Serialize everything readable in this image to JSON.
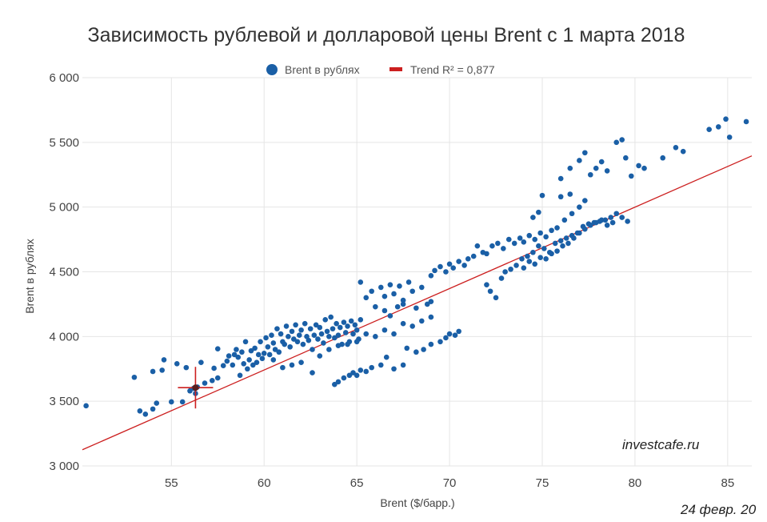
{
  "colors": {
    "series": "#1a5fa6",
    "trend": "#cc1f1f",
    "grid": "#e5e5e5",
    "axis_text": "#444444"
  },
  "watermark": "investcafe.ru",
  "datestamp": "24 февр. 20",
  "chart_data": {
    "type": "scatter",
    "title": "Зависимость рублевой и долларовой цены Brent с 1 марта 2018",
    "xlabel": "Brent ($/барр.)",
    "ylabel": "Brent в рублях",
    "xlim": [
      50.2,
      86.3
    ],
    "ylim": [
      3000,
      6000
    ],
    "xticks": [
      55,
      60,
      65,
      70,
      75,
      80,
      85
    ],
    "xtick_labels": [
      "55",
      "60",
      "65",
      "70",
      "75",
      "80",
      "85"
    ],
    "yticks": [
      3000,
      3500,
      4000,
      4500,
      5000,
      5500,
      6000
    ],
    "ytick_labels": [
      "3 000",
      "3 500",
      "4 000",
      "4 500",
      "5 000",
      "5 500",
      "6 000"
    ],
    "grid": true,
    "legend_position": "top-center",
    "series": [
      {
        "name": "Brent в рублях",
        "points": [
          [
            50.4,
            3465
          ],
          [
            53.0,
            3685
          ],
          [
            53.3,
            3425
          ],
          [
            53.6,
            3400
          ],
          [
            54.0,
            3440
          ],
          [
            54.0,
            3730
          ],
          [
            54.2,
            3485
          ],
          [
            54.5,
            3740
          ],
          [
            54.6,
            3820
          ],
          [
            55.0,
            3495
          ],
          [
            55.3,
            3790
          ],
          [
            55.6,
            3495
          ],
          [
            55.8,
            3760
          ],
          [
            56.0,
            3580
          ],
          [
            56.2,
            3600
          ],
          [
            56.3,
            3560
          ],
          [
            56.4,
            3610
          ],
          [
            56.6,
            3800
          ],
          [
            56.8,
            3640
          ],
          [
            57.2,
            3660
          ],
          [
            57.3,
            3755
          ],
          [
            57.5,
            3680
          ],
          [
            57.5,
            3905
          ],
          [
            57.8,
            3775
          ],
          [
            58.0,
            3810
          ],
          [
            58.1,
            3850
          ],
          [
            58.3,
            3780
          ],
          [
            58.4,
            3860
          ],
          [
            58.5,
            3900
          ],
          [
            58.6,
            3840
          ],
          [
            58.7,
            3700
          ],
          [
            58.8,
            3880
          ],
          [
            58.9,
            3790
          ],
          [
            59.0,
            3960
          ],
          [
            59.1,
            3750
          ],
          [
            59.2,
            3820
          ],
          [
            59.3,
            3890
          ],
          [
            59.4,
            3780
          ],
          [
            59.5,
            3910
          ],
          [
            59.6,
            3800
          ],
          [
            59.7,
            3860
          ],
          [
            59.8,
            3960
          ],
          [
            59.9,
            3830
          ],
          [
            60.0,
            3870
          ],
          [
            60.1,
            3990
          ],
          [
            60.2,
            3920
          ],
          [
            60.3,
            3860
          ],
          [
            60.4,
            4010
          ],
          [
            60.5,
            3950
          ],
          [
            60.6,
            3900
          ],
          [
            60.7,
            4060
          ],
          [
            60.8,
            3880
          ],
          [
            60.9,
            4020
          ],
          [
            61.0,
            3960
          ],
          [
            61.1,
            3940
          ],
          [
            61.2,
            4080
          ],
          [
            61.3,
            4000
          ],
          [
            61.4,
            3920
          ],
          [
            61.5,
            4040
          ],
          [
            61.6,
            3980
          ],
          [
            61.7,
            4090
          ],
          [
            61.8,
            3960
          ],
          [
            61.9,
            4010
          ],
          [
            62.0,
            4050
          ],
          [
            62.1,
            3940
          ],
          [
            62.2,
            4100
          ],
          [
            62.3,
            4000
          ],
          [
            62.4,
            3970
          ],
          [
            62.5,
            4060
          ],
          [
            62.6,
            3900
          ],
          [
            62.7,
            4010
          ],
          [
            62.8,
            4090
          ],
          [
            62.9,
            3980
          ],
          [
            63.0,
            4070
          ],
          [
            63.1,
            4020
          ],
          [
            63.2,
            3950
          ],
          [
            63.3,
            4130
          ],
          [
            63.4,
            4040
          ],
          [
            63.5,
            4000
          ],
          [
            63.6,
            4150
          ],
          [
            63.7,
            4060
          ],
          [
            63.8,
            3990
          ],
          [
            63.9,
            4100
          ],
          [
            64.0,
            4010
          ],
          [
            64.1,
            4070
          ],
          [
            64.2,
            3940
          ],
          [
            64.3,
            4110
          ],
          [
            64.4,
            4030
          ],
          [
            64.5,
            4080
          ],
          [
            64.6,
            3960
          ],
          [
            64.7,
            4120
          ],
          [
            64.8,
            4020
          ],
          [
            64.9,
            4090
          ],
          [
            65.0,
            4050
          ],
          [
            65.1,
            3980
          ],
          [
            65.2,
            4130
          ],
          [
            60.5,
            3820
          ],
          [
            61.0,
            3760
          ],
          [
            61.5,
            3780
          ],
          [
            62.0,
            3800
          ],
          [
            62.6,
            3720
          ],
          [
            63.0,
            3850
          ],
          [
            63.5,
            3900
          ],
          [
            64.0,
            3930
          ],
          [
            64.5,
            3940
          ],
          [
            65.0,
            3960
          ],
          [
            65.5,
            4020
          ],
          [
            66.0,
            4000
          ],
          [
            66.5,
            4050
          ],
          [
            67.0,
            4020
          ],
          [
            67.5,
            4100
          ],
          [
            68.0,
            4080
          ],
          [
            68.5,
            4120
          ],
          [
            69.0,
            4150
          ],
          [
            65.2,
            4420
          ],
          [
            65.5,
            4300
          ],
          [
            65.8,
            4350
          ],
          [
            66.0,
            4230
          ],
          [
            66.3,
            4380
          ],
          [
            66.5,
            4310
          ],
          [
            66.8,
            4400
          ],
          [
            67.0,
            4330
          ],
          [
            67.3,
            4390
          ],
          [
            67.5,
            4280
          ],
          [
            67.8,
            4420
          ],
          [
            68.0,
            4350
          ],
          [
            68.2,
            4220
          ],
          [
            68.5,
            4380
          ],
          [
            68.8,
            4250
          ],
          [
            69.0,
            4270
          ],
          [
            66.5,
            4200
          ],
          [
            66.8,
            4160
          ],
          [
            67.2,
            4230
          ],
          [
            67.5,
            4250
          ],
          [
            63.8,
            3630
          ],
          [
            64.0,
            3650
          ],
          [
            64.3,
            3680
          ],
          [
            64.6,
            3700
          ],
          [
            64.8,
            3720
          ],
          [
            65.0,
            3700
          ],
          [
            65.2,
            3740
          ],
          [
            65.5,
            3730
          ],
          [
            65.8,
            3760
          ],
          [
            66.3,
            3780
          ],
          [
            66.6,
            3840
          ],
          [
            67.0,
            3750
          ],
          [
            67.5,
            3780
          ],
          [
            67.7,
            3910
          ],
          [
            68.2,
            3880
          ],
          [
            68.6,
            3900
          ],
          [
            69.0,
            3940
          ],
          [
            69.5,
            3960
          ],
          [
            69.8,
            3990
          ],
          [
            70.0,
            4020
          ],
          [
            70.3,
            4010
          ],
          [
            70.5,
            4040
          ],
          [
            69.0,
            4470
          ],
          [
            69.2,
            4510
          ],
          [
            69.5,
            4540
          ],
          [
            69.8,
            4500
          ],
          [
            70.0,
            4560
          ],
          [
            70.2,
            4530
          ],
          [
            70.5,
            4580
          ],
          [
            70.8,
            4550
          ],
          [
            71.0,
            4600
          ],
          [
            71.3,
            4620
          ],
          [
            71.5,
            4700
          ],
          [
            71.8,
            4650
          ],
          [
            72.0,
            4640
          ],
          [
            72.3,
            4700
          ],
          [
            72.6,
            4720
          ],
          [
            72.9,
            4680
          ],
          [
            73.2,
            4750
          ],
          [
            73.5,
            4720
          ],
          [
            73.8,
            4760
          ],
          [
            74.0,
            4730
          ],
          [
            74.3,
            4780
          ],
          [
            74.6,
            4750
          ],
          [
            74.9,
            4800
          ],
          [
            75.2,
            4770
          ],
          [
            75.5,
            4820
          ],
          [
            75.8,
            4840
          ],
          [
            76.2,
            4900
          ],
          [
            76.6,
            4950
          ],
          [
            77.0,
            5000
          ],
          [
            77.3,
            5050
          ],
          [
            75.0,
            5090
          ],
          [
            76.0,
            5080
          ],
          [
            76.5,
            5100
          ],
          [
            74.5,
            4920
          ],
          [
            74.8,
            4960
          ],
          [
            72.0,
            4400
          ],
          [
            72.2,
            4350
          ],
          [
            72.5,
            4300
          ],
          [
            72.8,
            4450
          ],
          [
            73.0,
            4500
          ],
          [
            73.3,
            4520
          ],
          [
            73.6,
            4550
          ],
          [
            73.9,
            4600
          ],
          [
            74.2,
            4620
          ],
          [
            74.5,
            4650
          ],
          [
            74.8,
            4700
          ],
          [
            75.1,
            4680
          ],
          [
            75.4,
            4650
          ],
          [
            75.7,
            4720
          ],
          [
            76.0,
            4740
          ],
          [
            76.3,
            4760
          ],
          [
            76.6,
            4780
          ],
          [
            76.9,
            4800
          ],
          [
            77.2,
            4850
          ],
          [
            77.5,
            4870
          ],
          [
            77.8,
            4880
          ],
          [
            78.1,
            4890
          ],
          [
            78.4,
            4900
          ],
          [
            78.7,
            4920
          ],
          [
            79.0,
            4950
          ],
          [
            79.3,
            4920
          ],
          [
            79.6,
            4890
          ],
          [
            74.0,
            4530
          ],
          [
            74.3,
            4580
          ],
          [
            74.6,
            4560
          ],
          [
            74.9,
            4610
          ],
          [
            75.2,
            4600
          ],
          [
            75.5,
            4640
          ],
          [
            75.8,
            4660
          ],
          [
            76.1,
            4700
          ],
          [
            76.4,
            4720
          ],
          [
            76.7,
            4760
          ],
          [
            77.0,
            4800
          ],
          [
            77.3,
            4830
          ],
          [
            77.6,
            4860
          ],
          [
            77.9,
            4880
          ],
          [
            78.2,
            4900
          ],
          [
            78.5,
            4860
          ],
          [
            78.8,
            4880
          ],
          [
            76.0,
            5220
          ],
          [
            76.5,
            5300
          ],
          [
            77.0,
            5360
          ],
          [
            77.3,
            5420
          ],
          [
            77.6,
            5250
          ],
          [
            77.9,
            5300
          ],
          [
            78.2,
            5350
          ],
          [
            78.5,
            5280
          ],
          [
            79.0,
            5500
          ],
          [
            79.3,
            5520
          ],
          [
            79.5,
            5380
          ],
          [
            79.8,
            5240
          ],
          [
            80.2,
            5320
          ],
          [
            80.5,
            5300
          ],
          [
            81.5,
            5380
          ],
          [
            82.2,
            5460
          ],
          [
            82.6,
            5430
          ],
          [
            84.0,
            5600
          ],
          [
            84.5,
            5620
          ],
          [
            84.9,
            5680
          ],
          [
            85.1,
            5540
          ],
          [
            86.0,
            5660
          ]
        ]
      }
    ],
    "trend": {
      "name": "Trend R² = 0,877",
      "x_range": [
        50.2,
        86.3
      ],
      "slope": 62.9,
      "intercept": -32.4
    },
    "annotation": {
      "type": "crosshair",
      "x": 56.3,
      "y": 3605
    }
  }
}
